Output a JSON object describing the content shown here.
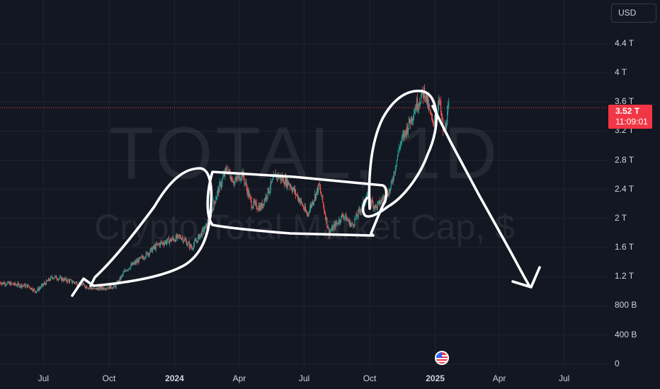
{
  "symbol_watermark": "TOTAL, 1D",
  "name_watermark": "Crypto Total Market Cap, $",
  "currency_button": "USD",
  "last_price": {
    "value": "3.52 T",
    "countdown": "11:09:01",
    "level_T": 3.52
  },
  "colors": {
    "background": "#131722",
    "grid": "#1f2430",
    "text": "#d1d4dc",
    "up": "#26a69a",
    "down": "#ef5350",
    "price_tag": "#f23645",
    "drawing": "#ffffff"
  },
  "events_icon": "us-flag-icon",
  "chart_data": {
    "type": "candlestick",
    "title": "",
    "y_unit": "USD (trillions)",
    "ylim": [
      -0.05,
      5.0
    ],
    "y_ticks": [
      {
        "label": "4.4 T",
        "value": 4.4
      },
      {
        "label": "4 T",
        "value": 4.0
      },
      {
        "label": "3.6 T",
        "value": 3.6
      },
      {
        "label": "3.2 T",
        "value": 3.2
      },
      {
        "label": "2.8 T",
        "value": 2.8
      },
      {
        "label": "2.4 T",
        "value": 2.4
      },
      {
        "label": "2 T",
        "value": 2.0
      },
      {
        "label": "1.6 T",
        "value": 1.6
      },
      {
        "label": "1.2 T",
        "value": 1.2
      },
      {
        "label": "800 B",
        "value": 0.8
      },
      {
        "label": "400 B",
        "value": 0.4
      },
      {
        "label": "0",
        "value": 0.0
      }
    ],
    "xlim": [
      "2023-05-01",
      "2025-08-31"
    ],
    "x_ticks": [
      {
        "label": "Jul",
        "date": "2023-07-01",
        "bold": false
      },
      {
        "label": "Oct",
        "date": "2023-10-01",
        "bold": false
      },
      {
        "label": "2024",
        "date": "2024-01-01",
        "bold": true
      },
      {
        "label": "Apr",
        "date": "2024-04-01",
        "bold": false
      },
      {
        "label": "Jul",
        "date": "2024-07-01",
        "bold": false
      },
      {
        "label": "Oct",
        "date": "2024-10-01",
        "bold": false
      },
      {
        "label": "2025",
        "date": "2025-01-01",
        "bold": true
      },
      {
        "label": "Apr",
        "date": "2025-04-01",
        "bold": false
      },
      {
        "label": "Jul",
        "date": "2025-07-01",
        "bold": false
      }
    ],
    "price_path": [
      [
        "2023-05-01",
        1.12
      ],
      [
        "2023-06-10",
        1.07
      ],
      [
        "2023-06-20",
        1.0
      ],
      [
        "2023-07-14",
        1.2
      ],
      [
        "2023-08-15",
        1.12
      ],
      [
        "2023-09-10",
        1.03
      ],
      [
        "2023-10-10",
        1.07
      ],
      [
        "2023-10-25",
        1.3
      ],
      [
        "2023-11-15",
        1.45
      ],
      [
        "2023-12-10",
        1.65
      ],
      [
        "2024-01-10",
        1.75
      ],
      [
        "2024-01-25",
        1.6
      ],
      [
        "2024-02-15",
        1.9
      ],
      [
        "2024-03-01",
        2.35
      ],
      [
        "2024-03-14",
        2.68
      ],
      [
        "2024-03-25",
        2.5
      ],
      [
        "2024-04-05",
        2.62
      ],
      [
        "2024-04-18",
        2.2
      ],
      [
        "2024-05-01",
        2.15
      ],
      [
        "2024-05-22",
        2.6
      ],
      [
        "2024-06-10",
        2.48
      ],
      [
        "2024-06-25",
        2.25
      ],
      [
        "2024-07-05",
        2.05
      ],
      [
        "2024-07-22",
        2.45
      ],
      [
        "2024-08-05",
        1.8
      ],
      [
        "2024-08-25",
        2.05
      ],
      [
        "2024-09-06",
        1.9
      ],
      [
        "2024-09-27",
        2.3
      ],
      [
        "2024-10-10",
        2.15
      ],
      [
        "2024-10-30",
        2.4
      ],
      [
        "2024-11-12",
        3.0
      ],
      [
        "2024-11-25",
        3.3
      ],
      [
        "2024-12-05",
        3.55
      ],
      [
        "2024-12-17",
        3.75
      ],
      [
        "2024-12-28",
        3.3
      ],
      [
        "2025-01-07",
        3.6
      ],
      [
        "2025-01-13",
        3.15
      ],
      [
        "2025-01-20",
        3.52
      ]
    ],
    "annotations": [
      {
        "type": "freehand-loop",
        "description": "rising channel"
      },
      {
        "type": "freehand-rectangle",
        "description": "sideways range"
      },
      {
        "type": "freehand-loop",
        "description": "breakout to top"
      },
      {
        "type": "freehand-arrow",
        "description": "down arrow"
      }
    ]
  }
}
